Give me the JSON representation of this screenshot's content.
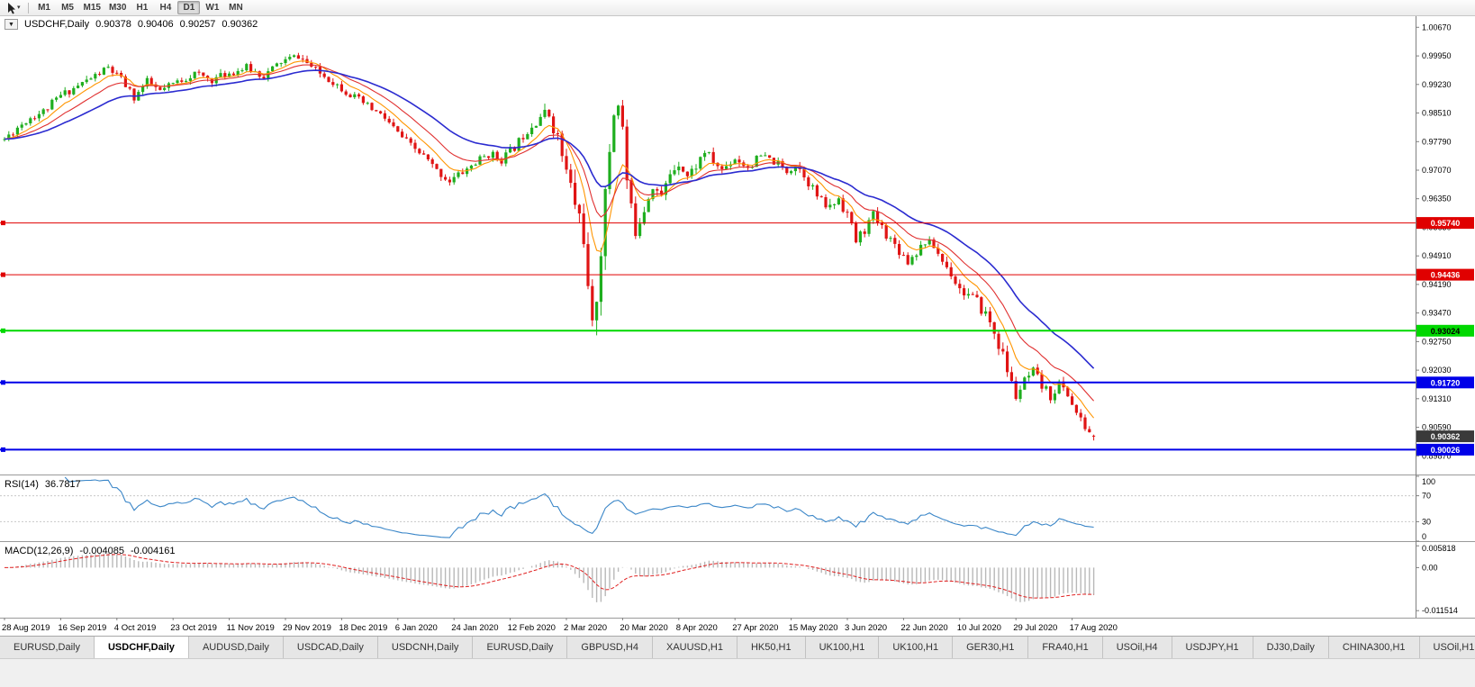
{
  "colors": {
    "candle_up": "#1fae1f",
    "candle_down": "#e01414",
    "ma_fast": "#ff9500",
    "ma_mid": "#e03030",
    "ma_slow": "#2b2bd0",
    "rsi_line": "#3a86c8",
    "macd_bars": "#b8b8b8",
    "macd_signal": "#e02020",
    "hline_red": "#e00000",
    "hline_green": "#00d800",
    "hline_blue": "#0000e8",
    "price_badge_bg": "#3a3a3a"
  },
  "toolbar": {
    "timeframes": [
      "M1",
      "M5",
      "M15",
      "M30",
      "H1",
      "H4",
      "D1",
      "W1",
      "MN"
    ],
    "active_timeframe": "D1"
  },
  "chart": {
    "title": "USDCHF,Daily",
    "ohlc": {
      "open": "0.90378",
      "high": "0.90406",
      "low": "0.90257",
      "close": "0.90362"
    },
    "current_price": "0.90362",
    "axis_ticks": [
      "1.00670",
      "0.99950",
      "0.99230",
      "0.98510",
      "0.97790",
      "0.97070",
      "0.96350",
      "0.95630",
      "0.94910",
      "0.94190",
      "0.93470",
      "0.92750",
      "0.92030",
      "0.91310",
      "0.90590",
      "0.89870"
    ],
    "hlines": [
      {
        "label": "0.95740",
        "value": 0.9574,
        "color_key": "hline_red",
        "width": 1,
        "text_color": "#ffffff"
      },
      {
        "label": "0.94436",
        "value": 0.94436,
        "color_key": "hline_red",
        "width": 1,
        "text_color": "#ffffff"
      },
      {
        "label": "0.93024",
        "value": 0.93024,
        "color_key": "hline_green",
        "width": 2,
        "text_color": "#000000"
      },
      {
        "label": "0.91720",
        "value": 0.9172,
        "color_key": "hline_blue",
        "width": 2,
        "text_color": "#ffffff"
      },
      {
        "label": "0.90026",
        "value": 0.90026,
        "color_key": "hline_blue",
        "width": 2,
        "text_color": "#ffffff"
      }
    ],
    "dates": [
      "28 Aug 2019",
      "16 Sep 2019",
      "4 Oct 2019",
      "23 Oct 2019",
      "11 Nov 2019",
      "29 Nov 2019",
      "18 Dec 2019",
      "6 Jan 2020",
      "24 Jan 2020",
      "12 Feb 2020",
      "2 Mar 2020",
      "20 Mar 2020",
      "8 Apr 2020",
      "27 Apr 2020",
      "15 May 2020",
      "3 Jun 2020",
      "22 Jun 2020",
      "10 Jul 2020",
      "29 Jul 2020",
      "17 Aug 2020"
    ]
  },
  "rsi": {
    "label": "RSI(14)",
    "value": "36.7817",
    "period": 14,
    "axis_labels": [
      "100",
      "70",
      "30",
      "0"
    ]
  },
  "macd": {
    "label": "MACD(12,26,9)",
    "main_value": "-0.004085",
    "signal_value": "-0.004161",
    "axis_labels": [
      "0.005818",
      "0.00",
      "-0.011514"
    ]
  },
  "tabs": {
    "active_index": 1,
    "items": [
      "EURUSD,Daily",
      "USDCHF,Daily",
      "AUDUSD,Daily",
      "USDCAD,Daily",
      "USDCNH,Daily",
      "EURUSD,Daily",
      "GBPUSD,H4",
      "XAUUSD,H1",
      "HK50,H1",
      "UK100,H1",
      "UK100,H1",
      "GER30,H1",
      "FRA40,H1",
      "USOil,H4",
      "USDJPY,H1",
      "DJ30,Daily",
      "CHINA300,H1",
      "USOil,H1"
    ]
  },
  "chart_data": {
    "type": "candlestick",
    "symbol": "USDCHF",
    "period": "Daily",
    "n_candles": 253,
    "date_label_step": 13,
    "ylim": [
      0.894,
      1.0095
    ],
    "last_candle": {
      "open": 0.90378,
      "high": 0.90406,
      "low": 0.90257,
      "close": 0.90362
    },
    "price_anchors": [
      [
        0,
        0.9785
      ],
      [
        3,
        0.9815
      ],
      [
        6,
        0.984
      ],
      [
        9,
        0.9855
      ],
      [
        13,
        0.9895
      ],
      [
        17,
        0.992
      ],
      [
        21,
        0.9945
      ],
      [
        24,
        0.9965
      ],
      [
        27,
        0.9935
      ],
      [
        30,
        0.989
      ],
      [
        33,
        0.993
      ],
      [
        36,
        0.9905
      ],
      [
        40,
        0.993
      ],
      [
        44,
        0.995
      ],
      [
        48,
        0.9935
      ],
      [
        52,
        0.9952
      ],
      [
        56,
        0.9965
      ],
      [
        60,
        0.9945
      ],
      [
        64,
        0.998
      ],
      [
        68,
        0.9995
      ],
      [
        72,
        0.9958
      ],
      [
        76,
        0.993
      ],
      [
        80,
        0.9898
      ],
      [
        84,
        0.9868
      ],
      [
        88,
        0.9838
      ],
      [
        91,
        0.98
      ],
      [
        94,
        0.9768
      ],
      [
        97,
        0.9742
      ],
      [
        100,
        0.9705
      ],
      [
        103,
        0.968
      ],
      [
        106,
        0.9702
      ],
      [
        109,
        0.9726
      ],
      [
        112,
        0.9748
      ],
      [
        115,
        0.9735
      ],
      [
        118,
        0.9765
      ],
      [
        121,
        0.981
      ],
      [
        124,
        0.9845
      ],
      [
        126,
        0.9848
      ],
      [
        128,
        0.9788
      ],
      [
        130,
        0.97
      ],
      [
        132,
        0.9625
      ],
      [
        134,
        0.955
      ],
      [
        135,
        0.939
      ],
      [
        136,
        0.929
      ],
      [
        137,
        0.94
      ],
      [
        138,
        0.952
      ],
      [
        139,
        0.963
      ],
      [
        140,
        0.976
      ],
      [
        141,
        0.9855
      ],
      [
        142,
        0.9885
      ],
      [
        143,
        0.981
      ],
      [
        144,
        0.968
      ],
      [
        145,
        0.96
      ],
      [
        146,
        0.956
      ],
      [
        148,
        0.9615
      ],
      [
        150,
        0.9672
      ],
      [
        152,
        0.9638
      ],
      [
        154,
        0.97
      ],
      [
        156,
        0.9728
      ],
      [
        158,
        0.9692
      ],
      [
        160,
        0.9718
      ],
      [
        162,
        0.9755
      ],
      [
        164,
        0.9728
      ],
      [
        166,
        0.9708
      ],
      [
        169,
        0.9738
      ],
      [
        172,
        0.9715
      ],
      [
        175,
        0.9742
      ],
      [
        178,
        0.9728
      ],
      [
        181,
        0.9705
      ],
      [
        183,
        0.9722
      ],
      [
        185,
        0.9698
      ],
      [
        187,
        0.966
      ],
      [
        189,
        0.9625
      ],
      [
        191,
        0.9612
      ],
      [
        193,
        0.9638
      ],
      [
        195,
        0.9598
      ],
      [
        197,
        0.9528
      ],
      [
        199,
        0.9558
      ],
      [
        201,
        0.9592
      ],
      [
        203,
        0.9562
      ],
      [
        205,
        0.9532
      ],
      [
        207,
        0.9506
      ],
      [
        209,
        0.9478
      ],
      [
        211,
        0.9502
      ],
      [
        213,
        0.9528
      ],
      [
        215,
        0.9515
      ],
      [
        217,
        0.9478
      ],
      [
        219,
        0.9448
      ],
      [
        221,
        0.9408
      ],
      [
        223,
        0.9392
      ],
      [
        225,
        0.9372
      ],
      [
        227,
        0.9345
      ],
      [
        229,
        0.9298
      ],
      [
        231,
        0.9238
      ],
      [
        233,
        0.9168
      ],
      [
        234,
        0.9138
      ],
      [
        236,
        0.9172
      ],
      [
        238,
        0.9196
      ],
      [
        240,
        0.9162
      ],
      [
        242,
        0.9138
      ],
      [
        244,
        0.9168
      ],
      [
        246,
        0.9142
      ],
      [
        248,
        0.9095
      ],
      [
        250,
        0.9058
      ],
      [
        252,
        0.9036
      ]
    ],
    "vol_anchors": [
      [
        0,
        0.0022
      ],
      [
        90,
        0.0022
      ],
      [
        120,
        0.0026
      ],
      [
        128,
        0.0045
      ],
      [
        133,
        0.0085
      ],
      [
        137,
        0.0095
      ],
      [
        141,
        0.0075
      ],
      [
        145,
        0.006
      ],
      [
        150,
        0.0035
      ],
      [
        160,
        0.0028
      ],
      [
        180,
        0.0024
      ],
      [
        195,
        0.0038
      ],
      [
        200,
        0.003
      ],
      [
        215,
        0.0026
      ],
      [
        228,
        0.0038
      ],
      [
        236,
        0.0034
      ],
      [
        246,
        0.0026
      ],
      [
        252,
        0.0018
      ]
    ],
    "moving_averages": [
      {
        "name": "fast",
        "type": "ema",
        "period": 8
      },
      {
        "name": "mid",
        "type": "ema",
        "period": 16
      },
      {
        "name": "slow",
        "type": "ema",
        "period": 32
      }
    ],
    "macd_ylim": [
      -0.0134,
      0.0066
    ],
    "seed": 11
  }
}
